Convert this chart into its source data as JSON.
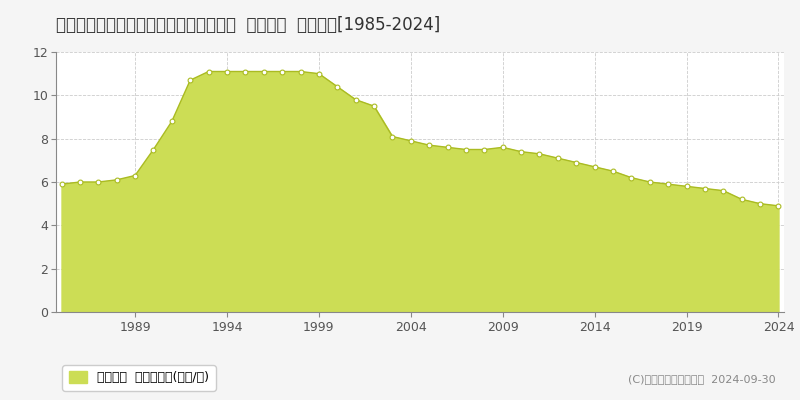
{
  "title": "兵庫県宝塚市大原野字森谷２９番１２外  公示地価  地価推移[1985-2024]",
  "years": [
    1985,
    1986,
    1987,
    1988,
    1989,
    1990,
    1991,
    1992,
    1993,
    1994,
    1995,
    1996,
    1997,
    1998,
    1999,
    2000,
    2001,
    2002,
    2003,
    2004,
    2005,
    2006,
    2007,
    2008,
    2009,
    2010,
    2011,
    2012,
    2013,
    2014,
    2015,
    2016,
    2017,
    2018,
    2019,
    2020,
    2021,
    2022,
    2023,
    2024
  ],
  "values": [
    5.9,
    6.0,
    6.0,
    6.1,
    6.3,
    7.5,
    8.8,
    10.7,
    11.1,
    11.1,
    11.1,
    11.1,
    11.1,
    11.1,
    11.0,
    10.4,
    9.8,
    9.5,
    8.1,
    7.9,
    7.7,
    7.6,
    7.5,
    7.5,
    7.6,
    7.4,
    7.3,
    7.1,
    6.9,
    6.7,
    6.5,
    6.2,
    6.0,
    5.9,
    5.8,
    5.7,
    5.6,
    5.2,
    5.0,
    4.9
  ],
  "fill_color": "#ccdd55",
  "line_color": "#aabb22",
  "marker_facecolor": "#ffffff",
  "marker_edgecolor": "#aabb22",
  "background_color": "#f5f5f5",
  "plot_bg_color": "#ffffff",
  "grid_color": "#cccccc",
  "ylim": [
    0,
    12
  ],
  "yticks": [
    0,
    2,
    4,
    6,
    8,
    10,
    12
  ],
  "xticks": [
    1989,
    1994,
    1999,
    2004,
    2009,
    2014,
    2019,
    2024
  ],
  "legend_label": "公示地価  平均坪単価(万円/坪)",
  "copyright": "(C)土地価格ドットコム  2024-09-30",
  "title_fontsize": 12,
  "axis_fontsize": 9,
  "legend_fontsize": 9,
  "copyright_fontsize": 8
}
